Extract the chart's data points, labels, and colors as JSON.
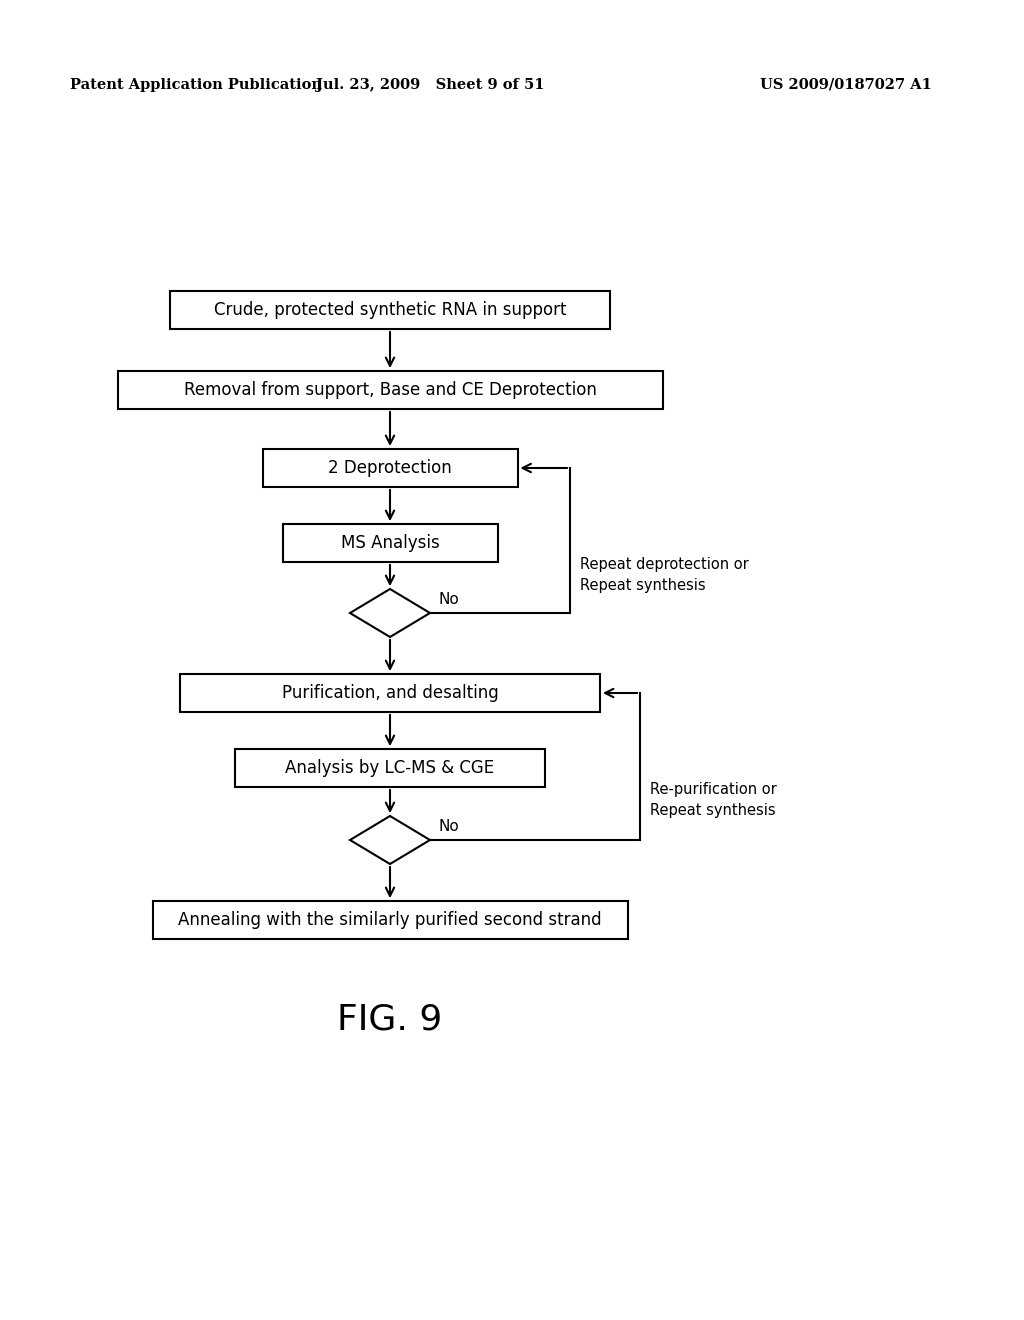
{
  "header_left": "Patent Application Publication",
  "header_mid": "Jul. 23, 2009   Sheet 9 of 51",
  "header_right": "US 2009/0187027 A1",
  "fig_label": "FIG. 9",
  "background_color": "#ffffff",
  "box_facecolor": "#ffffff",
  "box_edgecolor": "#000000",
  "figw": 10.24,
  "figh": 13.2,
  "dpi": 100
}
